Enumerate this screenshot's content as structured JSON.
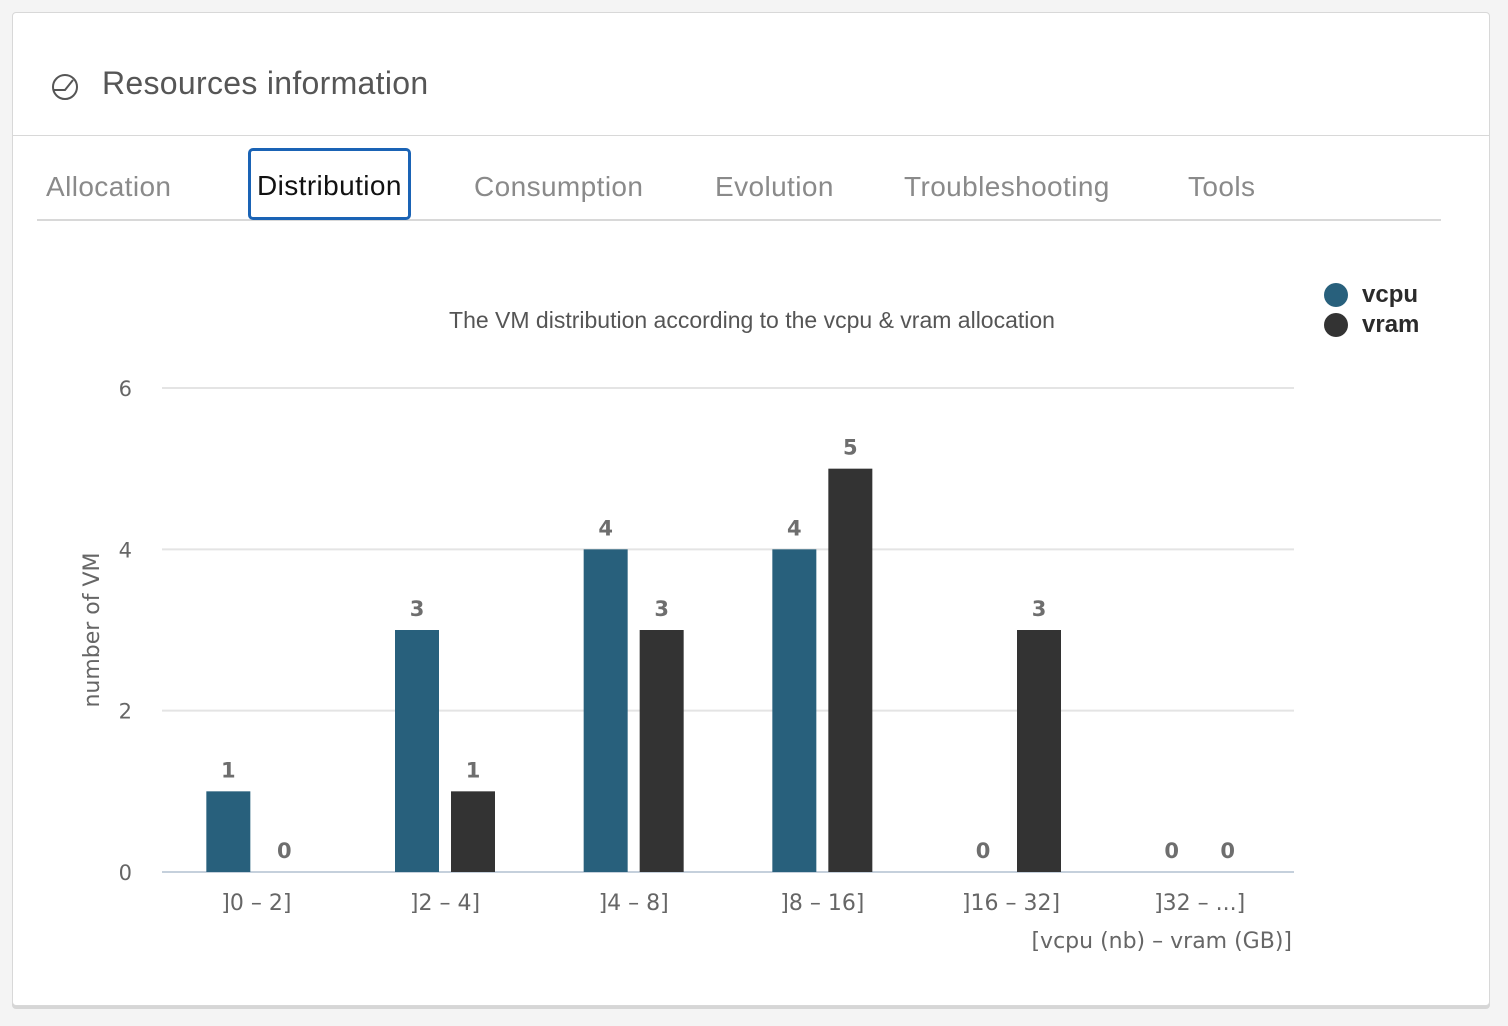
{
  "header": {
    "title": "Resources information",
    "icon": "pie-chart-icon"
  },
  "tabs": [
    {
      "label": "Allocation",
      "active": false
    },
    {
      "label": "Distribution",
      "active": true
    },
    {
      "label": "Consumption",
      "active": false
    },
    {
      "label": "Evolution",
      "active": false
    },
    {
      "label": "Troubleshooting",
      "active": false
    },
    {
      "label": "Tools",
      "active": false
    }
  ],
  "colors": {
    "vcpu": "#28607c",
    "vram": "#333333",
    "active_tab_border": "#1a63b5"
  },
  "chart_data": {
    "type": "bar",
    "title": "The VM distribution according to the vcpu & vram allocation",
    "xlabel": "[vcpu (nb) – vram (GB)]",
    "ylabel": "number of VM",
    "ylim": [
      0,
      6
    ],
    "yticks": [
      0,
      2,
      4,
      6
    ],
    "grid": true,
    "legend_position": "top-right",
    "categories": [
      "]0 – 2]",
      "]2 – 4]",
      "]4 – 8]",
      "]8 – 16]",
      "]16 – 32]",
      "]32 – ...]"
    ],
    "series": [
      {
        "name": "vcpu",
        "values": [
          1,
          3,
          4,
          4,
          0,
          0
        ]
      },
      {
        "name": "vram",
        "values": [
          0,
          1,
          3,
          5,
          3,
          0
        ]
      }
    ]
  }
}
